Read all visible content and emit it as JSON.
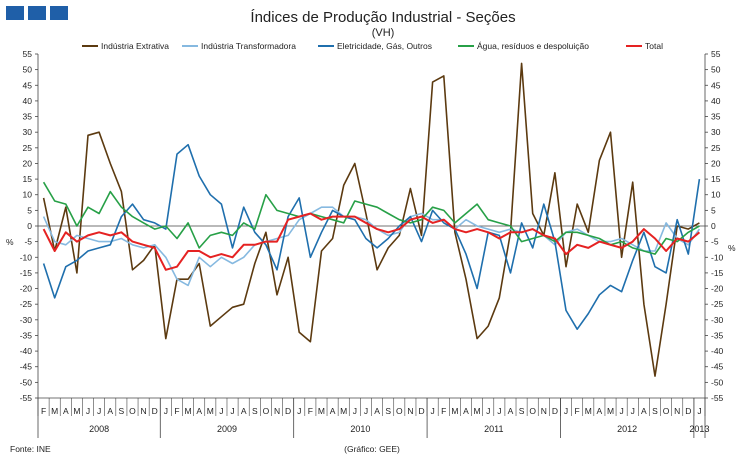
{
  "header": {
    "title": "Índices de Produção Industrial - Seções",
    "subtitle": "(VH)"
  },
  "footer": {
    "source": "Fonte: INE",
    "credit": "(Gráfico: GEE)"
  },
  "chart_data": {
    "type": "line",
    "title": "Índices de Produção Industrial - Seções",
    "subtitle": "(VH)",
    "ylabel_left": "%",
    "ylabel_right": "%",
    "ylim": [
      -55,
      55
    ],
    "ytick_step": 5,
    "grid": false,
    "legend_position": "top",
    "x": [
      "2008-02",
      "2008-03",
      "2008-04",
      "2008-05",
      "2008-06",
      "2008-07",
      "2008-08",
      "2008-09",
      "2008-10",
      "2008-11",
      "2008-12",
      "2009-01",
      "2009-02",
      "2009-03",
      "2009-04",
      "2009-05",
      "2009-06",
      "2009-07",
      "2009-08",
      "2009-09",
      "2009-10",
      "2009-11",
      "2009-12",
      "2010-01",
      "2010-02",
      "2010-03",
      "2010-04",
      "2010-05",
      "2010-06",
      "2010-07",
      "2010-08",
      "2010-09",
      "2010-10",
      "2010-11",
      "2010-12",
      "2011-01",
      "2011-02",
      "2011-03",
      "2011-04",
      "2011-05",
      "2011-06",
      "2011-07",
      "2011-08",
      "2011-09",
      "2011-10",
      "2011-11",
      "2011-12",
      "2012-01",
      "2012-02",
      "2012-03",
      "2012-04",
      "2012-05",
      "2012-06",
      "2012-07",
      "2012-08",
      "2012-09",
      "2012-10",
      "2012-11",
      "2012-12",
      "2013-01"
    ],
    "x_tick_labels": [
      "F",
      "M",
      "A",
      "M",
      "J",
      "J",
      "A",
      "S",
      "O",
      "N",
      "D",
      "J",
      "F",
      "M",
      "A",
      "M",
      "J",
      "J",
      "A",
      "S",
      "O",
      "N",
      "D",
      "J",
      "F",
      "M",
      "A",
      "M",
      "J",
      "J",
      "A",
      "S",
      "O",
      "N",
      "D",
      "J",
      "F",
      "M",
      "A",
      "M",
      "J",
      "J",
      "A",
      "S",
      "O",
      "N",
      "D",
      "J",
      "F",
      "M",
      "A",
      "M",
      "J",
      "J",
      "A",
      "S",
      "O",
      "N",
      "D",
      "J"
    ],
    "year_groups": [
      {
        "label": "2008",
        "count": 11
      },
      {
        "label": "2009",
        "count": 12
      },
      {
        "label": "2010",
        "count": 12
      },
      {
        "label": "2011",
        "count": 12
      },
      {
        "label": "2012",
        "count": 12
      },
      {
        "label": "2013",
        "count": 1
      }
    ],
    "series": [
      {
        "name": "Indústria Extrativa",
        "color": "#5c3a10",
        "values": [
          9,
          -8,
          6,
          -15,
          29,
          30,
          20,
          11,
          -14,
          -11,
          -6,
          -36,
          -17,
          -17,
          -12,
          -32,
          -29,
          -26,
          -25,
          -12,
          -2,
          -22,
          -10,
          -34,
          -37,
          -8,
          -4,
          13,
          20,
          4,
          -14,
          -7,
          -3,
          12,
          -3,
          46,
          48,
          -2,
          -17,
          -36,
          -32,
          -23,
          -2,
          52,
          4,
          -3,
          17,
          -13,
          7,
          -2,
          21,
          30,
          -10,
          14,
          -25,
          -48,
          -25,
          0,
          -1,
          1
        ],
        "label_position": "none"
      },
      {
        "name": "Indústria Transformadora",
        "color": "#86b9e0",
        "values": [
          3,
          -5,
          -6,
          -3,
          -4,
          -5,
          -5,
          -4,
          -6,
          -7,
          -6,
          -10,
          -17,
          -19,
          -10,
          -13,
          -10,
          -12,
          -10,
          -6,
          -5,
          -4,
          -3,
          2,
          4,
          6,
          6,
          3,
          3,
          2,
          -1,
          -3,
          -2,
          3,
          4,
          2,
          2,
          -1,
          2,
          0,
          -1,
          -2,
          -1,
          -2,
          -1,
          -3,
          -6,
          -2,
          -1,
          -3,
          -5,
          -5,
          -4,
          -6,
          -8,
          -8,
          1,
          -4,
          -6,
          -1
        ],
        "label_position": "none"
      },
      {
        "name": "Eletricidade, Gás, Outros",
        "color": "#1f6fad",
        "values": [
          -12,
          -23,
          -13,
          -11,
          -8,
          -7,
          -6,
          3,
          7,
          2,
          1,
          -1,
          23,
          26,
          16,
          10,
          7,
          -7,
          6,
          -2,
          -6,
          -14,
          3,
          9,
          -10,
          -2,
          5,
          3,
          2,
          -4,
          -7,
          -4,
          0,
          3,
          -5,
          5,
          1,
          -1,
          -9,
          -20,
          -2,
          -3,
          -15,
          1,
          -7,
          7,
          -5,
          -27,
          -33,
          -28,
          -22,
          -19,
          -21,
          -11,
          -2,
          -13,
          -15,
          2,
          -9,
          15
        ],
        "label_position": "none"
      },
      {
        "name": "Água, resíduos e despoluição",
        "color": "#27a047",
        "values": [
          14,
          8,
          7,
          0,
          6,
          4,
          11,
          6,
          3,
          1,
          -1,
          0,
          -4,
          1,
          -7,
          -3,
          -2,
          -3,
          1,
          -1,
          10,
          5,
          4,
          3,
          4,
          3,
          2,
          1,
          8,
          7,
          6,
          4,
          2,
          1,
          2,
          6,
          5,
          1,
          4,
          7,
          2,
          1,
          0,
          -5,
          -4,
          -3,
          -5,
          -2,
          -2,
          -3,
          -4,
          -6,
          -5,
          -7,
          -8,
          -9,
          -4,
          -5,
          -2,
          0
        ],
        "label_position": "none"
      },
      {
        "name": "Total",
        "color": "#e52222",
        "values": [
          -1,
          -8,
          -2,
          -5,
          -3,
          -2,
          -3,
          -2,
          -5,
          -6,
          -7,
          -14,
          -13,
          -8,
          -8,
          -10,
          -9,
          -10,
          -6,
          -6,
          -5,
          -5,
          2,
          3,
          4,
          2,
          3,
          3,
          3,
          1,
          -1,
          -2,
          -1,
          2,
          3,
          1,
          2,
          -1,
          -2,
          -1,
          -2,
          -4,
          -2,
          -2,
          -1,
          -3,
          -4,
          -9,
          -6,
          -7,
          -5,
          -6,
          -7,
          -5,
          -1,
          -4,
          -8,
          -4,
          -5,
          -2
        ],
        "label_position": "none"
      }
    ]
  }
}
